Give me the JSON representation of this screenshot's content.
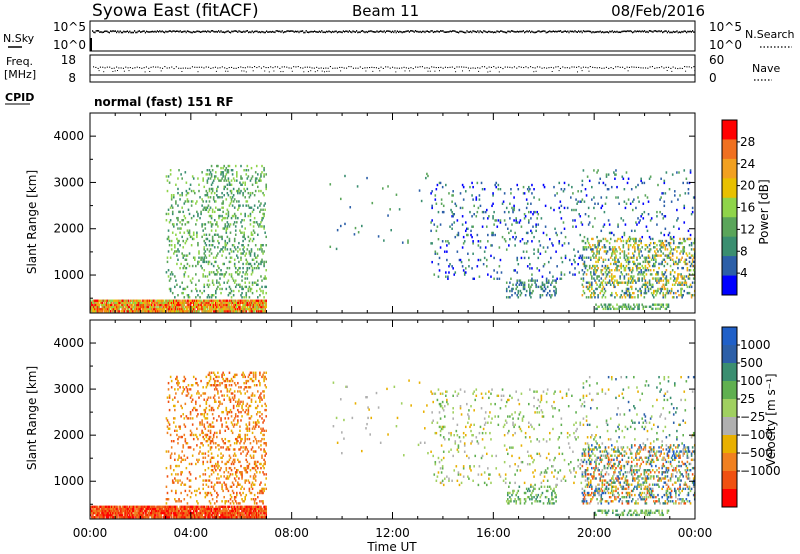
{
  "header": {
    "station": "Syowa East (fitACF)",
    "beam": "Beam 11",
    "date": "08/Feb/2016"
  },
  "top_panels": {
    "nsky_label": "N.Sky",
    "nsky_ticks": [
      "10^5",
      "10^0"
    ],
    "nsearch_label": "N.Search",
    "nsearch_ticks": [
      "10^5",
      "10^0"
    ],
    "freq_label": "Freq.",
    "freq_unit": "[MHz]",
    "freq_ticks": [
      "18",
      "8"
    ],
    "nave_label": "Nave",
    "nave_ticks": [
      "60",
      "0"
    ],
    "cpid_label": "CPID",
    "cpid_text": "normal (fast) 151 RF"
  },
  "x_axis": {
    "label": "Time UT",
    "ticks": [
      "00:00",
      "04:00",
      "08:00",
      "12:00",
      "16:00",
      "20:00",
      "00:00"
    ]
  },
  "colors": {
    "power_scale": [
      "#0000ff",
      "#2c5fa8",
      "#3a8e70",
      "#5aa55a",
      "#8fd44a",
      "#e8c000",
      "#f2a020",
      "#f07020",
      "#ff0000"
    ],
    "velocity_scale": [
      "#ff0000",
      "#f05010",
      "#f08020",
      "#e8b000",
      "#b0b0b0",
      "#a0d060",
      "#60b050",
      "#3a8e70",
      "#2c5fa8",
      "#2060c8"
    ]
  },
  "chart_data": [
    {
      "type": "heatmap",
      "name": "power",
      "ylabel": "Slant Range [km]",
      "xlabel": "",
      "y_ticks": [
        "1000",
        "2000",
        "3000",
        "4000"
      ],
      "colorbar_label": "Power [dB]",
      "colorbar_ticks": [
        "4",
        "8",
        "12",
        "16",
        "20",
        "24",
        "28"
      ],
      "xlim_hours": [
        0,
        24
      ],
      "ylim_km": [
        180,
        4500
      ],
      "patches": [
        {
          "t0": 0.0,
          "t1": 7.0,
          "r0": 200,
          "r1": 450,
          "density": 0.9,
          "cmin": 4,
          "cmax": 8
        },
        {
          "t0": 3.0,
          "t1": 4.5,
          "r0": 500,
          "r1": 3300,
          "density": 0.12,
          "cmin": 2,
          "cmax": 4
        },
        {
          "t0": 4.5,
          "t1": 7.0,
          "r0": 500,
          "r1": 3400,
          "density": 0.18,
          "cmin": 2,
          "cmax": 4
        },
        {
          "t0": 9.5,
          "t1": 13.5,
          "r0": 1500,
          "r1": 3200,
          "density": 0.01,
          "cmin": 1,
          "cmax": 3
        },
        {
          "t0": 13.5,
          "t1": 19.5,
          "r0": 900,
          "r1": 3000,
          "density": 0.06,
          "cmin": 0,
          "cmax": 3
        },
        {
          "t0": 16.5,
          "t1": 18.5,
          "r0": 500,
          "r1": 900,
          "density": 0.22,
          "cmin": 1,
          "cmax": 3
        },
        {
          "t0": 19.5,
          "t1": 24.0,
          "r0": 500,
          "r1": 1800,
          "density": 0.28,
          "cmin": 1,
          "cmax": 6
        },
        {
          "t0": 19.5,
          "t1": 24.0,
          "r0": 1800,
          "r1": 3300,
          "density": 0.05,
          "cmin": 0,
          "cmax": 3
        },
        {
          "t0": 20.0,
          "t1": 23.0,
          "r0": 250,
          "r1": 400,
          "density": 0.4,
          "cmin": 2,
          "cmax": 4
        }
      ]
    },
    {
      "type": "heatmap",
      "name": "velocity",
      "ylabel": "Slant Range [km]",
      "xlabel": "Time UT",
      "y_ticks": [
        "1000",
        "2000",
        "3000",
        "4000"
      ],
      "colorbar_label": "Velocity [m s⁻¹]",
      "colorbar_ticks": [
        "1000",
        "500",
        "100",
        "25",
        "−25",
        "−100",
        "−500",
        "−1000"
      ],
      "xlim_hours": [
        0,
        24
      ],
      "ylim_km": [
        180,
        4500
      ],
      "patches": [
        {
          "t0": 0.0,
          "t1": 7.0,
          "r0": 200,
          "r1": 450,
          "density": 0.9,
          "cmin": 0,
          "cmax": 2
        },
        {
          "t0": 3.0,
          "t1": 4.5,
          "r0": 500,
          "r1": 3300,
          "density": 0.12,
          "cmin": 1,
          "cmax": 3
        },
        {
          "t0": 4.5,
          "t1": 7.0,
          "r0": 500,
          "r1": 3400,
          "density": 0.18,
          "cmin": 1,
          "cmax": 3
        },
        {
          "t0": 9.5,
          "t1": 13.5,
          "r0": 1500,
          "r1": 3200,
          "density": 0.01,
          "cmin": 3,
          "cmax": 5
        },
        {
          "t0": 13.5,
          "t1": 19.5,
          "r0": 900,
          "r1": 3000,
          "density": 0.06,
          "cmin": 3,
          "cmax": 6
        },
        {
          "t0": 16.5,
          "t1": 18.5,
          "r0": 500,
          "r1": 900,
          "density": 0.22,
          "cmin": 5,
          "cmax": 7
        },
        {
          "t0": 19.5,
          "t1": 24.0,
          "r0": 500,
          "r1": 1800,
          "density": 0.28,
          "cmin": 1,
          "cmax": 9
        },
        {
          "t0": 19.5,
          "t1": 24.0,
          "r0": 1800,
          "r1": 3300,
          "density": 0.05,
          "cmin": 3,
          "cmax": 8
        },
        {
          "t0": 20.0,
          "t1": 23.0,
          "r0": 250,
          "r1": 400,
          "density": 0.4,
          "cmin": 5,
          "cmax": 7
        }
      ]
    }
  ]
}
